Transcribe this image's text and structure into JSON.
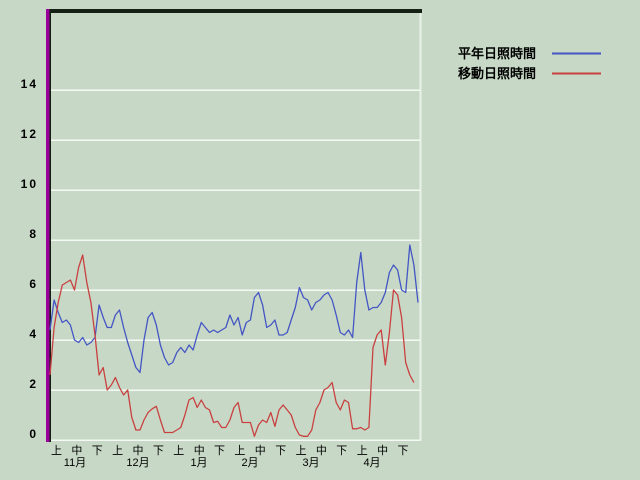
{
  "colors": {
    "background": "#c7d9c6",
    "gridline": "#f4f9f4",
    "plot_border_dark": "#152015",
    "plot_right_border": "#e9f2e9",
    "axis_purple": "#990099",
    "text": "#000000",
    "series_normal_blue": "#4455c4",
    "series_moving_red": "#c94040"
  },
  "legend": {
    "items": [
      {
        "label": "平年日照時間",
        "color": "#4455c4"
      },
      {
        "label": "移動日照時間",
        "color": "#c94040"
      }
    ]
  },
  "chart_data": {
    "type": "line",
    "title": "",
    "xlabel": "",
    "ylabel": "",
    "grid": "horizontal",
    "legend_position": "top-right",
    "ylim": [
      0,
      17.2
    ],
    "y_ticks": [
      0,
      2,
      4,
      6,
      8,
      10,
      12,
      14
    ],
    "x_day_span": 180,
    "day_step": 2,
    "x_jun_labels": [
      "上",
      "中",
      "下",
      "上",
      "中",
      "下",
      "上",
      "中",
      "下",
      "上",
      "中",
      "下",
      "上",
      "中",
      "下",
      "上",
      "中",
      "下"
    ],
    "x_month_labels": [
      "11月",
      "12月",
      "1月",
      "2月",
      "3月",
      "4月"
    ],
    "series": [
      {
        "name": "平年日照時間",
        "color": "#4455c4",
        "values": [
          4.4,
          5.6,
          5.1,
          4.7,
          4.8,
          4.6,
          4.0,
          3.9,
          4.1,
          3.8,
          3.9,
          4.1,
          5.4,
          4.9,
          4.5,
          4.5,
          5.0,
          5.2,
          4.5,
          3.9,
          3.4,
          2.9,
          2.7,
          4.0,
          4.9,
          5.1,
          4.6,
          3.8,
          3.3,
          3.0,
          3.1,
          3.5,
          3.7,
          3.5,
          3.8,
          3.6,
          4.2,
          4.7,
          4.5,
          4.3,
          4.4,
          4.3,
          4.4,
          4.5,
          5.0,
          4.6,
          4.9,
          4.2,
          4.7,
          4.8,
          5.7,
          5.9,
          5.4,
          4.5,
          4.6,
          4.8,
          4.2,
          4.2,
          4.3,
          4.8,
          5.3,
          6.1,
          5.7,
          5.6,
          5.2,
          5.5,
          5.6,
          5.8,
          5.9,
          5.6,
          5.0,
          4.3,
          4.2,
          4.4,
          4.1,
          6.3,
          7.5,
          6.0,
          5.2,
          5.3,
          5.3,
          5.5,
          5.9,
          6.7,
          7.0,
          6.8,
          6.0,
          5.9,
          7.8,
          7.0,
          5.5
        ]
      },
      {
        "name": "移動日照時間",
        "color": "#c94040",
        "values": [
          2.6,
          4.5,
          5.5,
          6.2,
          6.3,
          6.4,
          6.0,
          6.9,
          7.4,
          6.3,
          5.5,
          4.2,
          2.6,
          2.9,
          2.0,
          2.2,
          2.5,
          2.1,
          1.8,
          2.0,
          0.9,
          0.4,
          0.4,
          0.8,
          1.1,
          1.25,
          1.35,
          0.8,
          0.3,
          0.3,
          0.3,
          0.4,
          0.5,
          1.0,
          1.6,
          1.7,
          1.3,
          1.6,
          1.3,
          1.2,
          0.7,
          0.75,
          0.5,
          0.5,
          0.8,
          1.3,
          1.5,
          0.7,
          0.7,
          0.7,
          0.15,
          0.6,
          0.8,
          0.7,
          1.1,
          0.55,
          1.2,
          1.4,
          1.2,
          1.0,
          0.5,
          0.2,
          0.15,
          0.15,
          0.4,
          1.2,
          1.5,
          2.0,
          2.1,
          2.3,
          1.5,
          1.2,
          1.6,
          1.5,
          0.45,
          0.45,
          0.5,
          0.4,
          0.5,
          3.7,
          4.2,
          4.4,
          3.0,
          4.3,
          6.0,
          5.8,
          4.9,
          3.1,
          2.6,
          2.3
        ]
      }
    ]
  }
}
